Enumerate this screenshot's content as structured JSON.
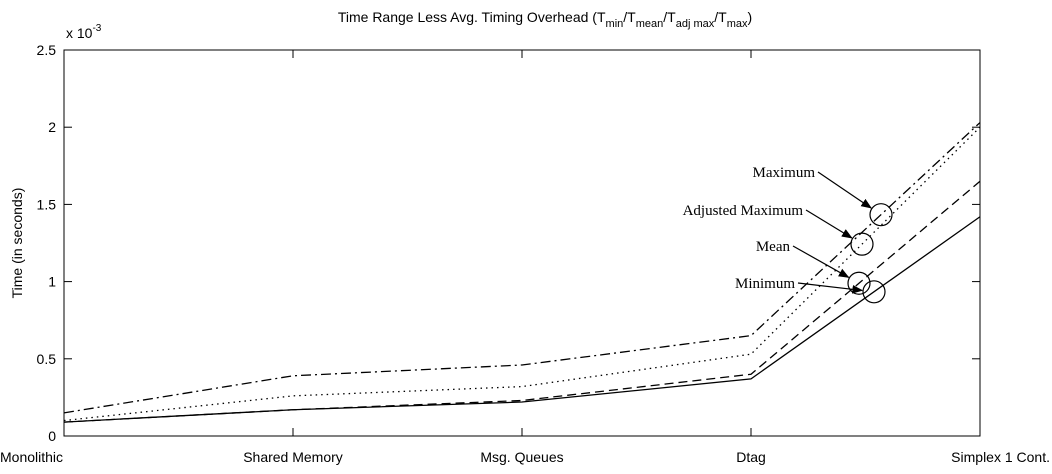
{
  "chart_data": {
    "type": "line",
    "title": [
      {
        "text": "Time Range Less Avg. Timing Overhead (T"
      },
      {
        "sub": "min"
      },
      {
        "text": "/T"
      },
      {
        "sub": "mean"
      },
      {
        "text": "/T"
      },
      {
        "sub": "adj max"
      },
      {
        "text": "/T"
      },
      {
        "sub": "max"
      },
      {
        "text": ")"
      }
    ],
    "y_label": "Time (in seconds)",
    "axis_multiplier": {
      "base": "x 10",
      "exponent": "-3"
    },
    "categories": [
      "Monolithic",
      "Shared Memory",
      "Msg. Queues",
      "Dtag",
      "Simplex 1 Cont."
    ],
    "series": [
      {
        "name": "Minimum",
        "color": "#000000",
        "dash": "solid",
        "values": [
          0.09,
          0.17,
          0.22,
          0.37,
          1.42
        ]
      },
      {
        "name": "Mean",
        "color": "#000000",
        "dash": "dashed",
        "values": [
          0.09,
          0.17,
          0.23,
          0.4,
          1.65
        ]
      },
      {
        "name": "Adjusted Maximum",
        "color": "#000000",
        "dash": "dotted",
        "values": [
          0.1,
          0.26,
          0.32,
          0.53,
          2.0
        ]
      },
      {
        "name": "Maximum",
        "color": "#000000",
        "dash": "dashdot",
        "values": [
          0.15,
          0.39,
          0.46,
          0.65,
          2.03
        ]
      }
    ],
    "ylim": [
      0,
      2.5
    ],
    "yticks": [
      0,
      0.5,
      1,
      1.5,
      2,
      2.5
    ],
    "grid": false
  }
}
